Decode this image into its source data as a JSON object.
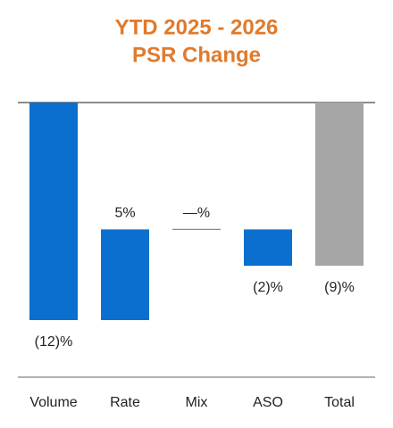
{
  "chart_data": {
    "type": "waterfall",
    "title": [
      "YTD 2025 - 2026",
      "PSR Change"
    ],
    "categories": [
      "Volume",
      "Rate",
      "Mix",
      "ASO",
      "Total"
    ],
    "values": [
      -12,
      5,
      0,
      -2,
      -9
    ],
    "value_labels": [
      "(12)%",
      "5%",
      "—%",
      "(2)%",
      "(9)%"
    ],
    "is_total": [
      false,
      false,
      false,
      false,
      true
    ],
    "color": "#0a6fce",
    "total_color": "#a6a6a6"
  }
}
